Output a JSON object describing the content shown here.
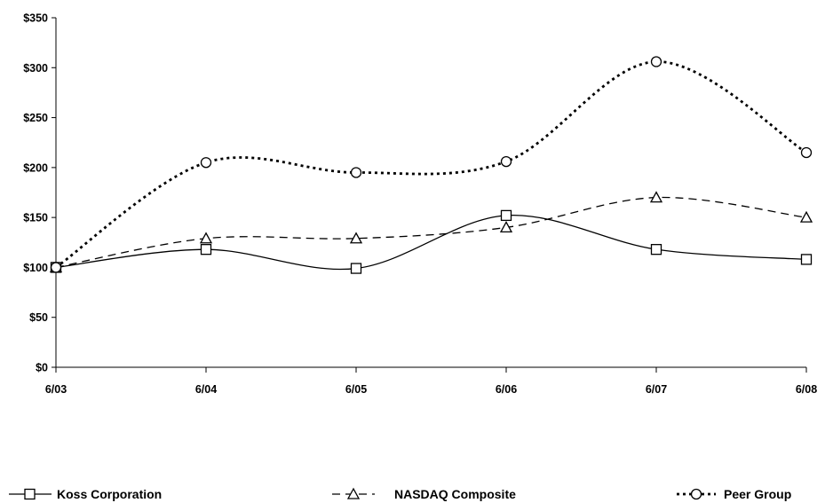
{
  "chart_data": {
    "type": "line",
    "title": "",
    "xlabel": "",
    "ylabel": "",
    "categories": [
      "6/03",
      "6/04",
      "6/05",
      "6/06",
      "6/07",
      "6/08"
    ],
    "ylim": [
      0,
      350
    ],
    "yticks": [
      0,
      50,
      100,
      150,
      200,
      250,
      300,
      350
    ],
    "ytick_labels": [
      "$0",
      "$50",
      "$100",
      "$150",
      "$200",
      "$250",
      "$300",
      "$350"
    ],
    "grid": false,
    "legend_position": "bottom",
    "series": [
      {
        "name": "Koss Corporation",
        "marker": "square",
        "dash": "solid",
        "values": [
          100,
          118,
          99,
          152,
          118,
          108
        ]
      },
      {
        "name": "NASDAQ Composite",
        "marker": "triangle",
        "dash": "dashed",
        "values": [
          100,
          129,
          129,
          140,
          170,
          150
        ]
      },
      {
        "name": "Peer Group",
        "marker": "circle",
        "dash": "dotted",
        "values": [
          100,
          205,
          195,
          206,
          306,
          215
        ]
      }
    ]
  }
}
